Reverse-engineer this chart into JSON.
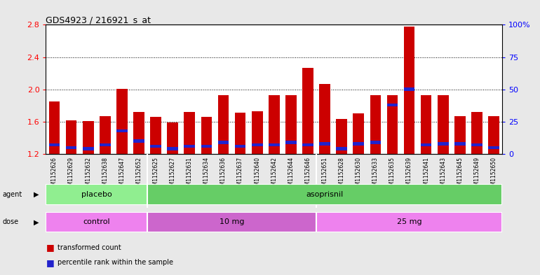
{
  "title": "GDS4923 / 216921_s_at",
  "samples": [
    "GSM1152626",
    "GSM1152629",
    "GSM1152632",
    "GSM1152638",
    "GSM1152647",
    "GSM1152652",
    "GSM1152625",
    "GSM1152627",
    "GSM1152631",
    "GSM1152634",
    "GSM1152636",
    "GSM1152637",
    "GSM1152640",
    "GSM1152642",
    "GSM1152644",
    "GSM1152646",
    "GSM1152651",
    "GSM1152628",
    "GSM1152630",
    "GSM1152633",
    "GSM1152635",
    "GSM1152639",
    "GSM1152641",
    "GSM1152643",
    "GSM1152645",
    "GSM1152649",
    "GSM1152650"
  ],
  "red_values": [
    1.85,
    1.62,
    1.61,
    1.67,
    2.01,
    1.72,
    1.66,
    1.59,
    1.72,
    1.66,
    1.93,
    1.71,
    1.73,
    1.93,
    1.93,
    2.27,
    2.07,
    1.63,
    1.7,
    1.93,
    1.93,
    2.78,
    1.93,
    1.93,
    1.67,
    1.72,
    1.67
  ],
  "blue_percentile": [
    7,
    5,
    4,
    7,
    18,
    10,
    6,
    4,
    6,
    6,
    9,
    6,
    7,
    7,
    9,
    7,
    8,
    4,
    8,
    9,
    38,
    50,
    7,
    8,
    8,
    7,
    5
  ],
  "ymin": 1.2,
  "ymax": 2.8,
  "yticks": [
    1.2,
    1.6,
    2.0,
    2.4,
    2.8
  ],
  "right_yticks": [
    0,
    25,
    50,
    75,
    100
  ],
  "right_ytick_labels": [
    "0",
    "25",
    "50",
    "75",
    "100%"
  ],
  "agent_groups": [
    {
      "label": "placebo",
      "start": 0,
      "end": 6,
      "color": "#90EE90"
    },
    {
      "label": "asoprisnil",
      "start": 6,
      "end": 27,
      "color": "#66CD66"
    }
  ],
  "dose_groups": [
    {
      "label": "control",
      "start": 0,
      "end": 6,
      "color": "#EE82EE"
    },
    {
      "label": "10 mg",
      "start": 6,
      "end": 16,
      "color": "#CC66CC"
    },
    {
      "label": "25 mg",
      "start": 16,
      "end": 27,
      "color": "#EE82EE"
    }
  ],
  "bar_color_red": "#CC0000",
  "bar_color_blue": "#2222CC",
  "bar_width": 0.65,
  "background_color": "#E8E8E8",
  "plot_bg": "#FFFFFF",
  "xtick_bg": "#D0D0D0"
}
